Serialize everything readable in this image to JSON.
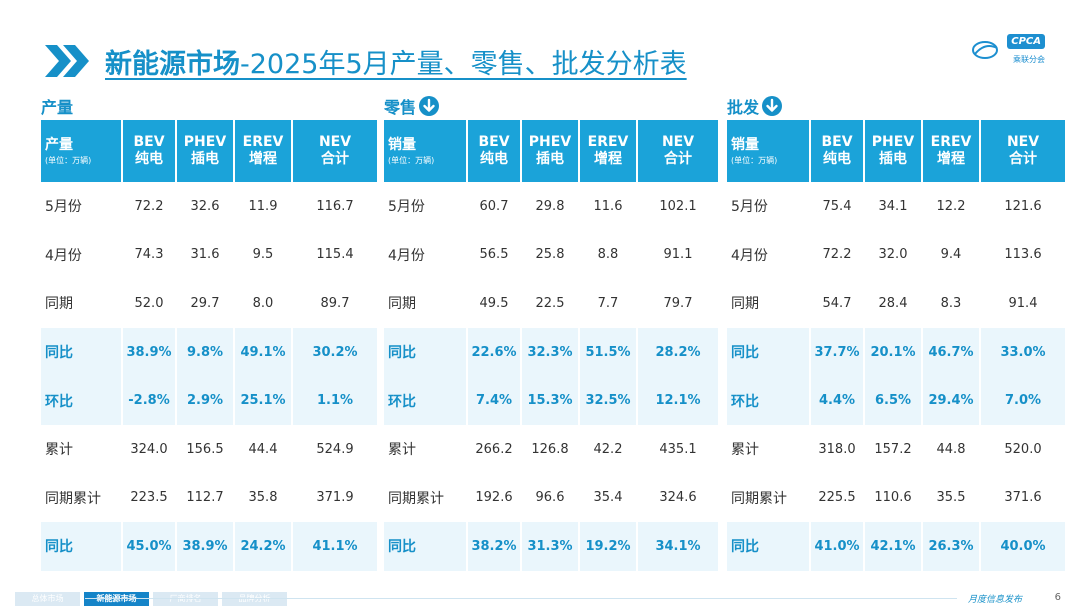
{
  "title": {
    "strong": "新能源市场",
    "rest": "-2025年5月产量、零售、批发分析表"
  },
  "logo": {
    "text": "CPCA",
    "sub": "乘联分会"
  },
  "colors": {
    "accent": "#1690c8",
    "header_bg": "#1ba3d9",
    "highlight_bg": "#eaf6fc"
  },
  "sections": [
    {
      "label": "产量",
      "has_icon": false,
      "header_first": "产量",
      "unit": "(单位：万辆)",
      "columns": [
        {
          "en": "BEV",
          "cn": "纯电"
        },
        {
          "en": "PHEV",
          "cn": "插电"
        },
        {
          "en": "EREV",
          "cn": "增程"
        },
        {
          "en": "NEV",
          "cn": "合计"
        }
      ],
      "rows": [
        {
          "label": "5月份",
          "values": [
            "72.2",
            "32.6",
            "11.9",
            "116.7"
          ],
          "hl": false
        },
        {
          "label": "4月份",
          "values": [
            "74.3",
            "31.6",
            "9.5",
            "115.4"
          ],
          "hl": false
        },
        {
          "label": "同期",
          "values": [
            "52.0",
            "29.7",
            "8.0",
            "89.7"
          ],
          "hl": false
        },
        {
          "label": "同比",
          "values": [
            "38.9%",
            "9.8%",
            "49.1%",
            "30.2%"
          ],
          "hl": true
        },
        {
          "label": "环比",
          "values": [
            "-2.8%",
            "2.9%",
            "25.1%",
            "1.1%"
          ],
          "hl": true
        },
        {
          "label": "累计",
          "values": [
            "324.0",
            "156.5",
            "44.4",
            "524.9"
          ],
          "hl": false
        },
        {
          "label": "同期累计",
          "values": [
            "223.5",
            "112.7",
            "35.8",
            "371.9"
          ],
          "hl": false
        },
        {
          "label": "同比",
          "values": [
            "45.0%",
            "38.9%",
            "24.2%",
            "41.1%"
          ],
          "hl": true
        }
      ]
    },
    {
      "label": "零售",
      "has_icon": true,
      "header_first": "销量",
      "unit": "(单位：万辆)",
      "columns": [
        {
          "en": "BEV",
          "cn": "纯电"
        },
        {
          "en": "PHEV",
          "cn": "插电"
        },
        {
          "en": "EREV",
          "cn": "增程"
        },
        {
          "en": "NEV",
          "cn": "合计"
        }
      ],
      "rows": [
        {
          "label": "5月份",
          "values": [
            "60.7",
            "29.8",
            "11.6",
            "102.1"
          ],
          "hl": false
        },
        {
          "label": "4月份",
          "values": [
            "56.5",
            "25.8",
            "8.8",
            "91.1"
          ],
          "hl": false
        },
        {
          "label": "同期",
          "values": [
            "49.5",
            "22.5",
            "7.7",
            "79.7"
          ],
          "hl": false
        },
        {
          "label": "同比",
          "values": [
            "22.6%",
            "32.3%",
            "51.5%",
            "28.2%"
          ],
          "hl": true
        },
        {
          "label": "环比",
          "values": [
            "7.4%",
            "15.3%",
            "32.5%",
            "12.1%"
          ],
          "hl": true
        },
        {
          "label": "累计",
          "values": [
            "266.2",
            "126.8",
            "42.2",
            "435.1"
          ],
          "hl": false
        },
        {
          "label": "同期累计",
          "values": [
            "192.6",
            "96.6",
            "35.4",
            "324.6"
          ],
          "hl": false
        },
        {
          "label": "同比",
          "values": [
            "38.2%",
            "31.3%",
            "19.2%",
            "34.1%"
          ],
          "hl": true
        }
      ]
    },
    {
      "label": "批发",
      "has_icon": true,
      "header_first": "销量",
      "unit": "(单位：万辆)",
      "columns": [
        {
          "en": "BEV",
          "cn": "纯电"
        },
        {
          "en": "PHEV",
          "cn": "插电"
        },
        {
          "en": "EREV",
          "cn": "增程"
        },
        {
          "en": "NEV",
          "cn": "合计"
        }
      ],
      "rows": [
        {
          "label": "5月份",
          "values": [
            "75.4",
            "34.1",
            "12.2",
            "121.6"
          ],
          "hl": false
        },
        {
          "label": "4月份",
          "values": [
            "72.2",
            "32.0",
            "9.4",
            "113.6"
          ],
          "hl": false
        },
        {
          "label": "同期",
          "values": [
            "54.7",
            "28.4",
            "8.3",
            "91.4"
          ],
          "hl": false
        },
        {
          "label": "同比",
          "values": [
            "37.7%",
            "20.1%",
            "46.7%",
            "33.0%"
          ],
          "hl": true
        },
        {
          "label": "环比",
          "values": [
            "4.4%",
            "6.5%",
            "29.4%",
            "7.0%"
          ],
          "hl": true
        },
        {
          "label": "累计",
          "values": [
            "318.0",
            "157.2",
            "44.8",
            "520.0"
          ],
          "hl": false
        },
        {
          "label": "同期累计",
          "values": [
            "225.5",
            "110.6",
            "35.5",
            "371.6"
          ],
          "hl": false
        },
        {
          "label": "同比",
          "values": [
            "41.0%",
            "42.1%",
            "26.3%",
            "40.0%"
          ],
          "hl": true
        }
      ]
    }
  ],
  "footer": {
    "tabs": [
      {
        "label": "总体市场",
        "active": false
      },
      {
        "label": "新能源市场",
        "active": true
      },
      {
        "label": "厂商排名",
        "active": false
      },
      {
        "label": "品牌分析",
        "active": false
      }
    ],
    "text": "月度信息发布",
    "page": "6"
  }
}
